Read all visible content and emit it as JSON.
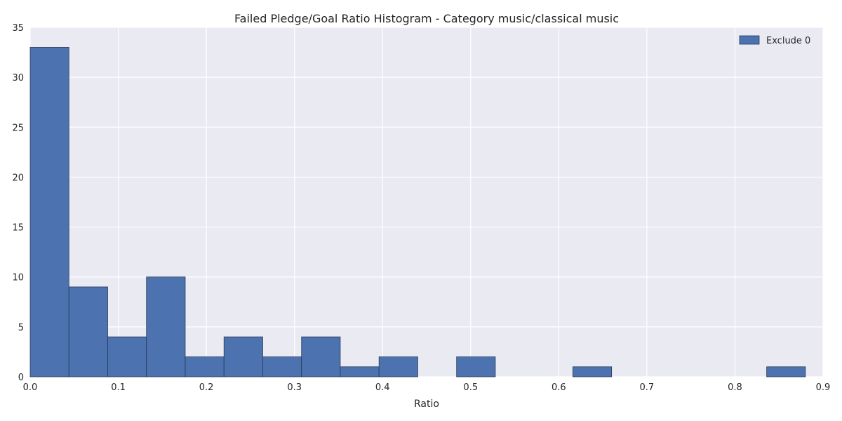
{
  "chart_data": {
    "type": "bar",
    "title": "Failed Pledge/Goal Ratio Histogram - Category music/classical music",
    "xlabel": "Ratio",
    "ylabel": "",
    "xlim": [
      0.0,
      0.9
    ],
    "ylim": [
      0,
      35
    ],
    "xticks": [
      "0.0",
      "0.1",
      "0.2",
      "0.3",
      "0.4",
      "0.5",
      "0.6",
      "0.7",
      "0.8",
      "0.9"
    ],
    "yticks": [
      "0",
      "5",
      "10",
      "15",
      "20",
      "25",
      "30",
      "35"
    ],
    "grid": true,
    "legend_position": "top-right",
    "series": [
      {
        "name": "Exclude 0",
        "color": "#4c72b0",
        "bins": [
          {
            "x0": 0.0,
            "x1": 0.044,
            "count": 33
          },
          {
            "x0": 0.044,
            "x1": 0.088,
            "count": 9
          },
          {
            "x0": 0.088,
            "x1": 0.132,
            "count": 4
          },
          {
            "x0": 0.132,
            "x1": 0.176,
            "count": 10
          },
          {
            "x0": 0.176,
            "x1": 0.22,
            "count": 2
          },
          {
            "x0": 0.22,
            "x1": 0.264,
            "count": 4
          },
          {
            "x0": 0.264,
            "x1": 0.308,
            "count": 2
          },
          {
            "x0": 0.308,
            "x1": 0.352,
            "count": 4
          },
          {
            "x0": 0.352,
            "x1": 0.396,
            "count": 1
          },
          {
            "x0": 0.396,
            "x1": 0.44,
            "count": 2
          },
          {
            "x0": 0.44,
            "x1": 0.484,
            "count": 0
          },
          {
            "x0": 0.484,
            "x1": 0.528,
            "count": 2
          },
          {
            "x0": 0.528,
            "x1": 0.572,
            "count": 0
          },
          {
            "x0": 0.572,
            "x1": 0.616,
            "count": 0
          },
          {
            "x0": 0.616,
            "x1": 0.66,
            "count": 1
          },
          {
            "x0": 0.66,
            "x1": 0.704,
            "count": 0
          },
          {
            "x0": 0.704,
            "x1": 0.748,
            "count": 0
          },
          {
            "x0": 0.748,
            "x1": 0.792,
            "count": 0
          },
          {
            "x0": 0.792,
            "x1": 0.836,
            "count": 0
          },
          {
            "x0": 0.836,
            "x1": 0.88,
            "count": 1
          }
        ]
      }
    ]
  },
  "colors": {
    "plot_background": "#eaeaf2",
    "grid": "#ffffff",
    "bar_edge": "#2a3a55"
  }
}
